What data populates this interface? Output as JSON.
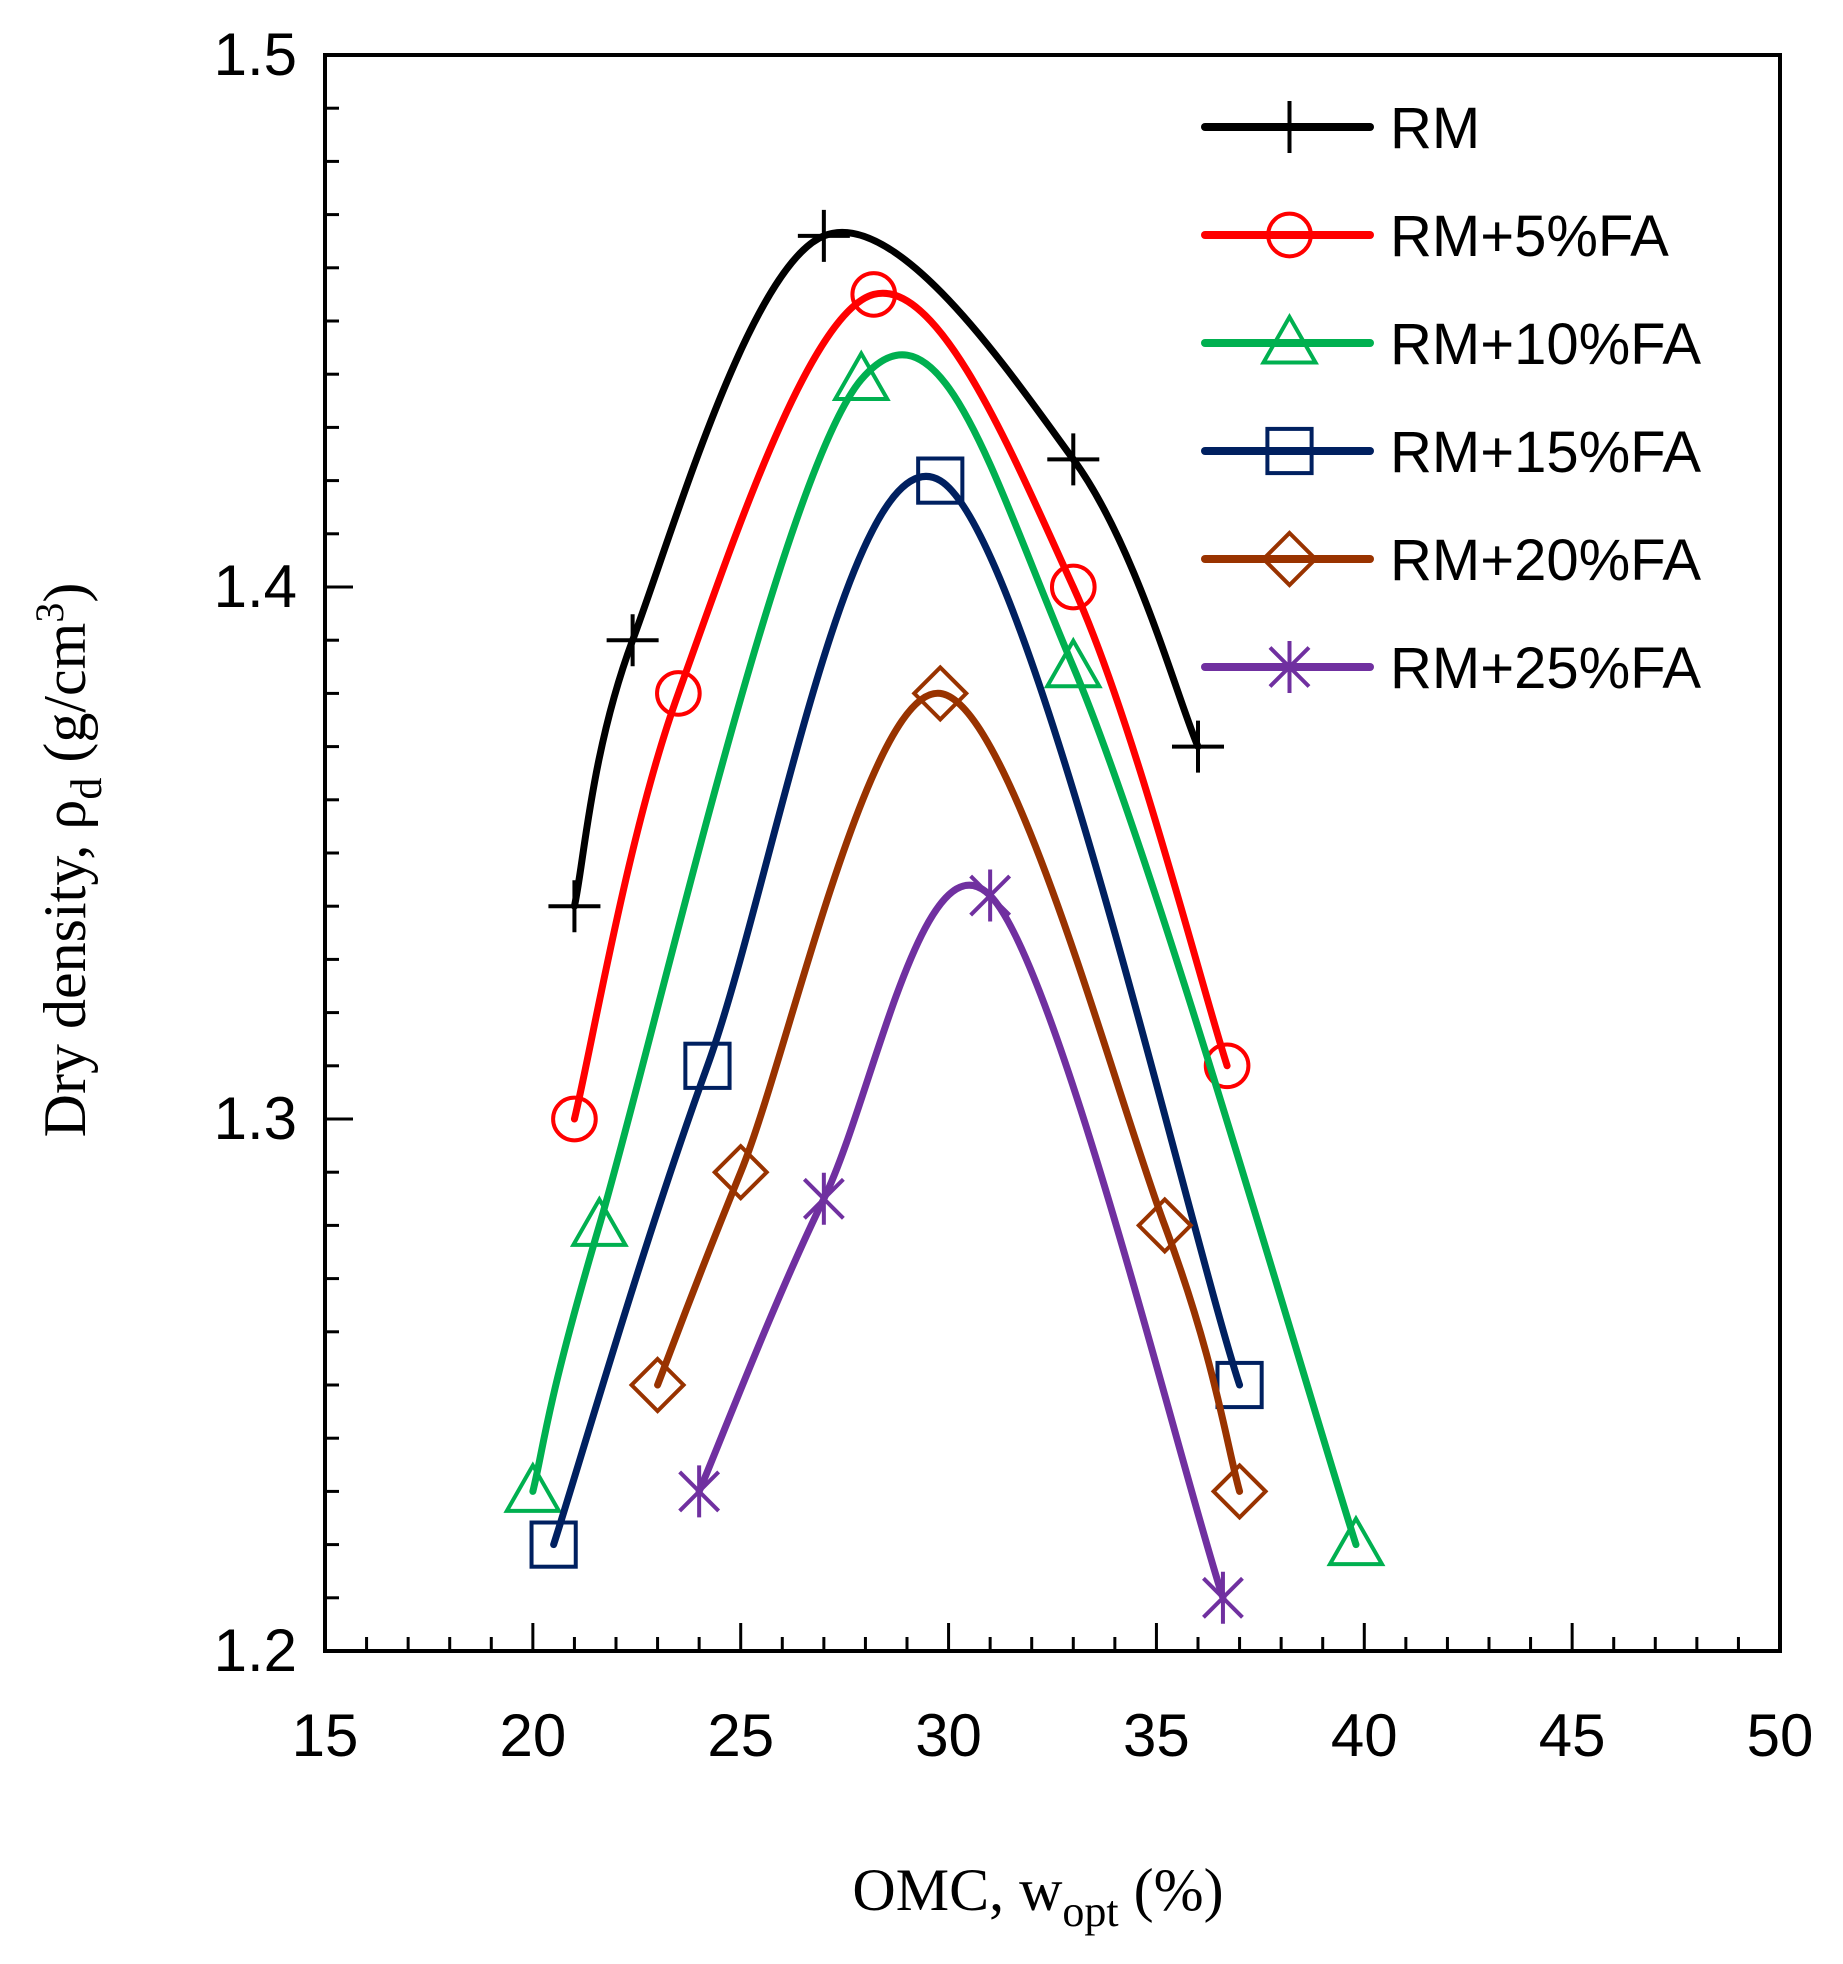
{
  "chart_data": {
    "type": "line",
    "title": "",
    "xlabel": {
      "main": "OMC, w",
      "sub": "opt",
      "suffix": " (%)"
    },
    "ylabel": {
      "main": "Dry density, ρ",
      "sub": "d",
      "unit_pre": " (g/cm",
      "unit_sup": "3",
      "unit_post": ")"
    },
    "xlim": [
      15,
      50
    ],
    "ylim": [
      1.2,
      1.5
    ],
    "x_ticks": [
      "15",
      "20",
      "25",
      "30",
      "35",
      "40",
      "45",
      "50"
    ],
    "y_ticks": [
      "1.2",
      "1.3",
      "1.4",
      "1.5"
    ],
    "legend_position": "top-right",
    "grid": false,
    "series": [
      {
        "name": "RM",
        "color": "#000000",
        "marker": "plus",
        "x": [
          21.0,
          22.4,
          27.0,
          33.0,
          36.0
        ],
        "y": [
          1.34,
          1.39,
          1.466,
          1.424,
          1.37
        ]
      },
      {
        "name": "RM+5%FA",
        "color": "#ff0000",
        "marker": "circle",
        "x": [
          21.0,
          23.5,
          28.2,
          33.0,
          36.7
        ],
        "y": [
          1.3,
          1.38,
          1.455,
          1.4,
          1.31
        ]
      },
      {
        "name": "RM+10%FA",
        "color": "#00b050",
        "marker": "triangle",
        "x": [
          20.0,
          21.6,
          27.9,
          33.0,
          39.8
        ],
        "y": [
          1.23,
          1.28,
          1.439,
          1.385,
          1.22
        ]
      },
      {
        "name": "RM+15%FA",
        "color": "#002060",
        "marker": "square",
        "x": [
          20.5,
          24.2,
          29.8,
          37.0
        ],
        "y": [
          1.22,
          1.31,
          1.42,
          1.25
        ]
      },
      {
        "name": "RM+20%FA",
        "color": "#993300",
        "marker": "diamond",
        "x": [
          23.0,
          25.0,
          29.8,
          35.2,
          37.0
        ],
        "y": [
          1.25,
          1.29,
          1.38,
          1.28,
          1.23
        ]
      },
      {
        "name": "RM+25%FA",
        "color": "#7030a0",
        "marker": "star",
        "x": [
          24.0,
          27.0,
          31.0,
          36.6
        ],
        "y": [
          1.23,
          1.285,
          1.342,
          1.21
        ]
      }
    ]
  }
}
